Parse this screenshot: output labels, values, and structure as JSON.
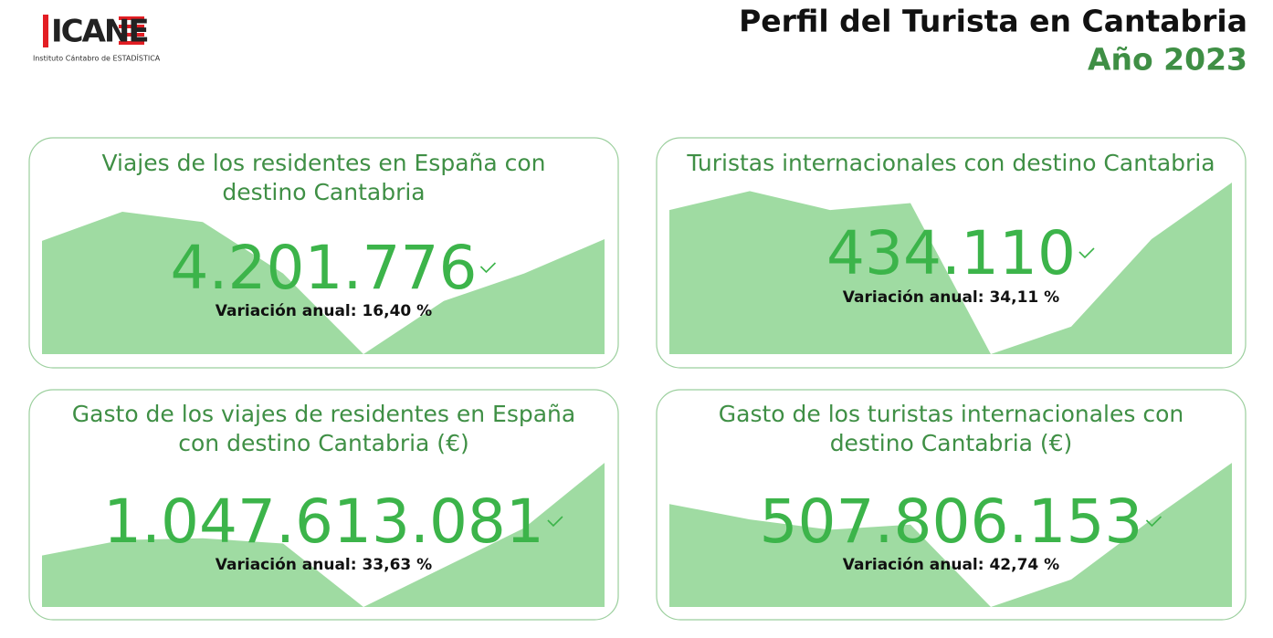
{
  "header": {
    "logo": "ICANE",
    "logo_caption": "Instituto Cántabro de ESTADÍSTICA",
    "title": "Perfil del Turista en Cantabria",
    "subtitle": "Año 2023"
  },
  "cards": [
    {
      "title": [
        "Viajes de los residentes en España con",
        "destino Cantabria"
      ],
      "value": "4.201.776",
      "variation": "Variación anual: 16,40 %",
      "trend": [
        66,
        83,
        77,
        47,
        0,
        31,
        47,
        67
      ]
    },
    {
      "title": [
        "Turistas internacionales con destino Cantabria"
      ],
      "value": "434.110",
      "variation": "Variación anual: 34,11 %",
      "trend": [
        84,
        95,
        84,
        88,
        0,
        16,
        67,
        100
      ]
    },
    {
      "title": [
        "Gasto de los viajes de residentes en España",
        "con destino Cantabria (€)"
      ],
      "value": "1.047.613.081",
      "variation": "Variación anual: 33,63 %",
      "trend": [
        30,
        39,
        40,
        37,
        0,
        23,
        46,
        84
      ]
    },
    {
      "title": [
        "Gasto de los turistas internacionales con",
        "destino Cantabria (€)"
      ],
      "value": "507.806.153",
      "variation": "Variación anual: 42,74 %",
      "trend": [
        60,
        51,
        45,
        48,
        0,
        16,
        51,
        84
      ]
    }
  ]
}
